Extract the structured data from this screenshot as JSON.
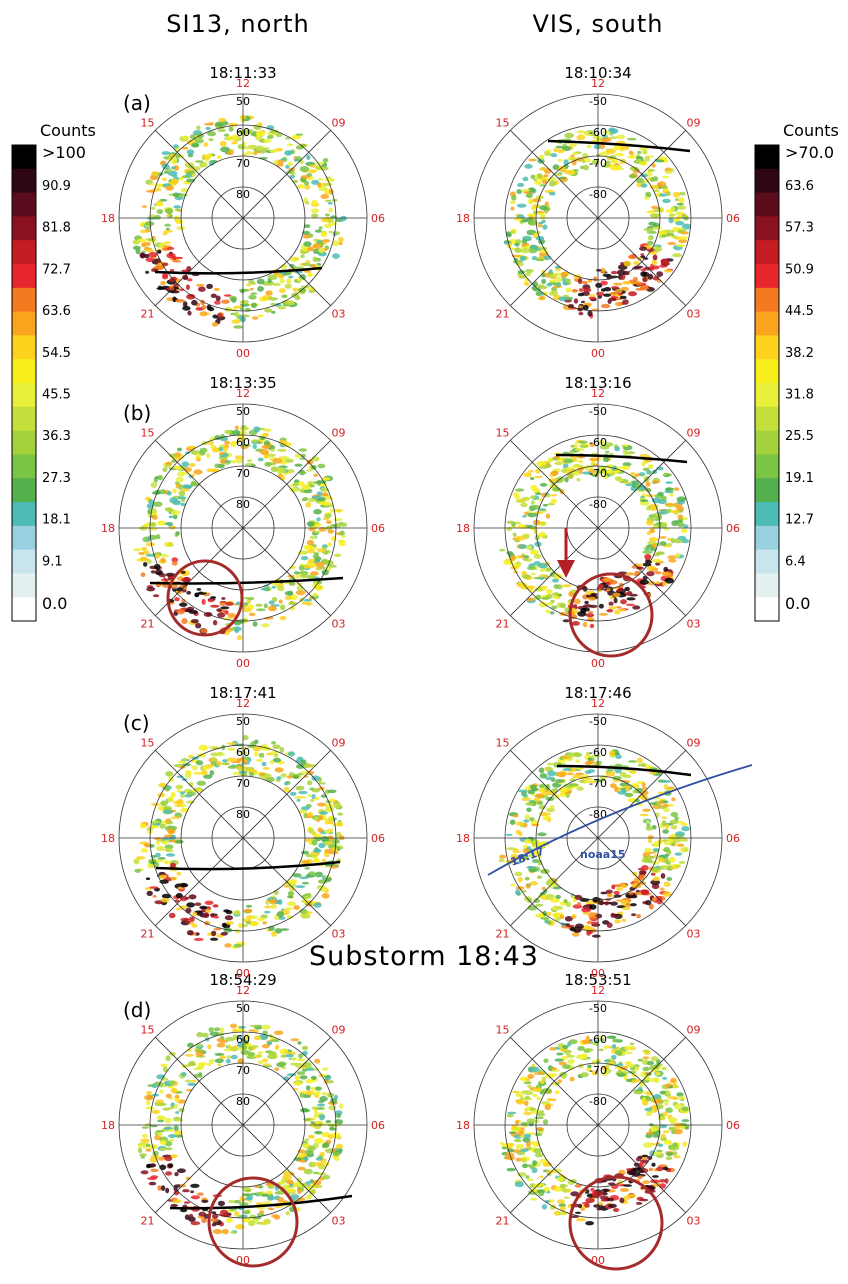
{
  "column_titles": {
    "left": "SI13, north",
    "right": "VIS, south"
  },
  "substorm_label": "Substorm 18:43",
  "rows": [
    {
      "panel": "(a)",
      "left_time": "18:11:33",
      "right_time": "18:10:34"
    },
    {
      "panel": "(b)",
      "left_time": "18:13:35",
      "right_time": "18:13:16"
    },
    {
      "panel": "(c)",
      "left_time": "18:17:41",
      "right_time": "18:17:46"
    },
    {
      "panel": "(d)",
      "left_time": "18:54:29",
      "right_time": "18:53:51"
    }
  ],
  "mlt_labels": {
    "top": "12",
    "right": "06",
    "bottom": "00",
    "left": "18",
    "upper_left": "15",
    "upper_right": "09",
    "lower_left": "21",
    "lower_right": "03"
  },
  "north_lat_labels": [
    "50",
    "60",
    "70",
    "80"
  ],
  "south_lat_labels": [
    "-50",
    "-60",
    "-70",
    "-80"
  ],
  "satellite_track": {
    "name": "noaa15",
    "time": "18:17"
  },
  "left_colorbar": {
    "title": "Counts",
    "labels": [
      ">100",
      "90.9",
      "81.8",
      "72.7",
      "63.6",
      "54.5",
      "45.5",
      "36.3",
      "27.3",
      "18.1",
      "9.1",
      "0.0"
    ]
  },
  "right_colorbar": {
    "title": "Counts",
    "labels": [
      ">70.0",
      "63.6",
      "57.3",
      "50.9",
      "44.5",
      "38.2",
      "31.8",
      "25.5",
      "19.1",
      "12.7",
      "6.4",
      "0.0"
    ]
  },
  "colors": {
    "scale": [
      "#000000",
      "#2e0712",
      "#5a0c1c",
      "#8a1220",
      "#c41c22",
      "#e8262e",
      "#f47a20",
      "#f9a41c",
      "#fcd21c",
      "#f8ee1c",
      "#e8f03c",
      "#c4de3c",
      "#a4d23c",
      "#7cc444",
      "#54b04c",
      "#4cbcb4",
      "#98d0e0",
      "#c8e4ec",
      "#e4f0f0",
      "#ffffff"
    ],
    "mlt_text": "#d42020",
    "circle_annotation": "#a52a2a",
    "arrow": "#b02025",
    "track": "#3050a0"
  }
}
